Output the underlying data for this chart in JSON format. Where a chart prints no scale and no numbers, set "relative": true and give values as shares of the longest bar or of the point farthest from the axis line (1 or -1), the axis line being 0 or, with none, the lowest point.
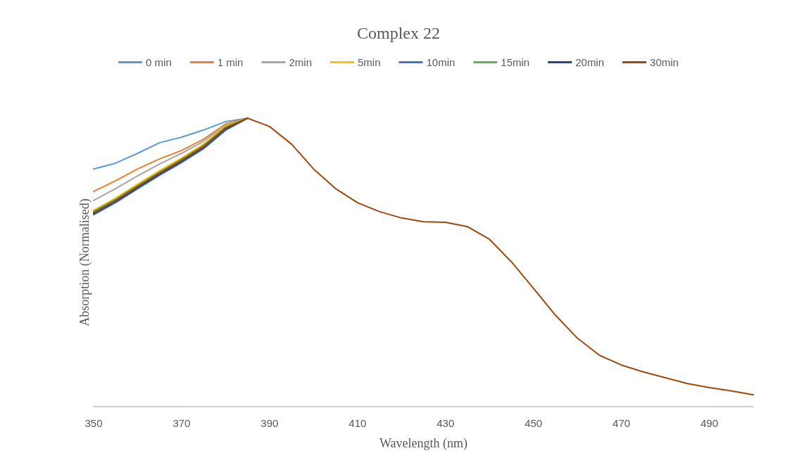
{
  "chart_data": {
    "type": "line",
    "title": "Complex 22",
    "xlabel": "Wavelength (nm)",
    "ylabel": "Absorption (Normalised)",
    "relative": true,
    "x": [
      350,
      355,
      360,
      365,
      370,
      375,
      380,
      385,
      390,
      395,
      400,
      405,
      410,
      415,
      420,
      425,
      430,
      435,
      440,
      445,
      450,
      455,
      460,
      465,
      470,
      475,
      480,
      485,
      490,
      495,
      500
    ],
    "xlim": [
      350,
      500
    ],
    "xticks": [
      350,
      370,
      390,
      410,
      430,
      450,
      470,
      490
    ],
    "series": [
      {
        "name": "0 min",
        "color": "#5b9bd5",
        "values": [
          0.824,
          0.844,
          0.878,
          0.915,
          0.934,
          0.959,
          0.988,
          1.0,
          null,
          null,
          null,
          null,
          null,
          null,
          null,
          null,
          null,
          null,
          null,
          null,
          null,
          null,
          null,
          null,
          null,
          null,
          null,
          null,
          null,
          null,
          null
        ]
      },
      {
        "name": "1 min",
        "color": "#ed7d31",
        "values": [
          0.746,
          0.783,
          0.824,
          0.859,
          0.888,
          0.927,
          0.98,
          1.0,
          null,
          null,
          null,
          null,
          null,
          null,
          null,
          null,
          null,
          null,
          null,
          null,
          null,
          null,
          null,
          null,
          null,
          null,
          null,
          null,
          null,
          null,
          null
        ]
      },
      {
        "name": "2min",
        "color": "#a5a5a5",
        "values": [
          0.715,
          0.756,
          0.8,
          0.841,
          0.878,
          0.92,
          0.976,
          1.0,
          null,
          null,
          null,
          null,
          null,
          null,
          null,
          null,
          null,
          null,
          null,
          null,
          null,
          null,
          null,
          null,
          null,
          null,
          null,
          null,
          null,
          null,
          null
        ]
      },
      {
        "name": "5min",
        "color": "#ffc000",
        "values": [
          0.681,
          0.723,
          0.771,
          0.818,
          0.862,
          0.91,
          0.974,
          1.0,
          null,
          null,
          null,
          null,
          null,
          null,
          null,
          null,
          null,
          null,
          null,
          null,
          null,
          null,
          null,
          null,
          null,
          null,
          null,
          null,
          null,
          null,
          null
        ]
      },
      {
        "name": "10min",
        "color": "#4472c4",
        "values": [
          0.665,
          0.707,
          0.755,
          0.802,
          0.846,
          0.894,
          0.958,
          1.0,
          null,
          null,
          null,
          null,
          null,
          null,
          null,
          null,
          null,
          null,
          null,
          null,
          null,
          null,
          null,
          null,
          null,
          null,
          null,
          null,
          null,
          null,
          null
        ]
      },
      {
        "name": "15min",
        "color": "#70ad47",
        "values": [
          0.677,
          0.719,
          0.767,
          0.814,
          0.858,
          0.906,
          0.97,
          1.0,
          null,
          null,
          null,
          null,
          null,
          null,
          null,
          null,
          null,
          null,
          null,
          null,
          null,
          null,
          null,
          null,
          null,
          null,
          null,
          null,
          null,
          null,
          null
        ]
      },
      {
        "name": "20min",
        "color": "#264478",
        "values": [
          0.669,
          0.711,
          0.759,
          0.806,
          0.85,
          0.898,
          0.962,
          1.0,
          null,
          null,
          null,
          null,
          null,
          null,
          null,
          null,
          null,
          null,
          null,
          null,
          null,
          null,
          null,
          null,
          null,
          null,
          null,
          null,
          null,
          null,
          null
        ]
      },
      {
        "name": "30min",
        "color": "#9e480e",
        "values": [
          0.673,
          0.715,
          0.763,
          0.81,
          0.854,
          0.902,
          0.966,
          1.0,
          0.971,
          0.91,
          0.824,
          0.756,
          0.707,
          0.676,
          0.654,
          0.641,
          0.639,
          0.624,
          0.58,
          0.502,
          0.41,
          0.317,
          0.237,
          0.178,
          0.144,
          0.12,
          0.1,
          0.08,
          0.066,
          0.054,
          0.041
        ]
      }
    ],
    "legend": "top",
    "grid": false,
    "marker": "none",
    "line_style": "solid"
  }
}
